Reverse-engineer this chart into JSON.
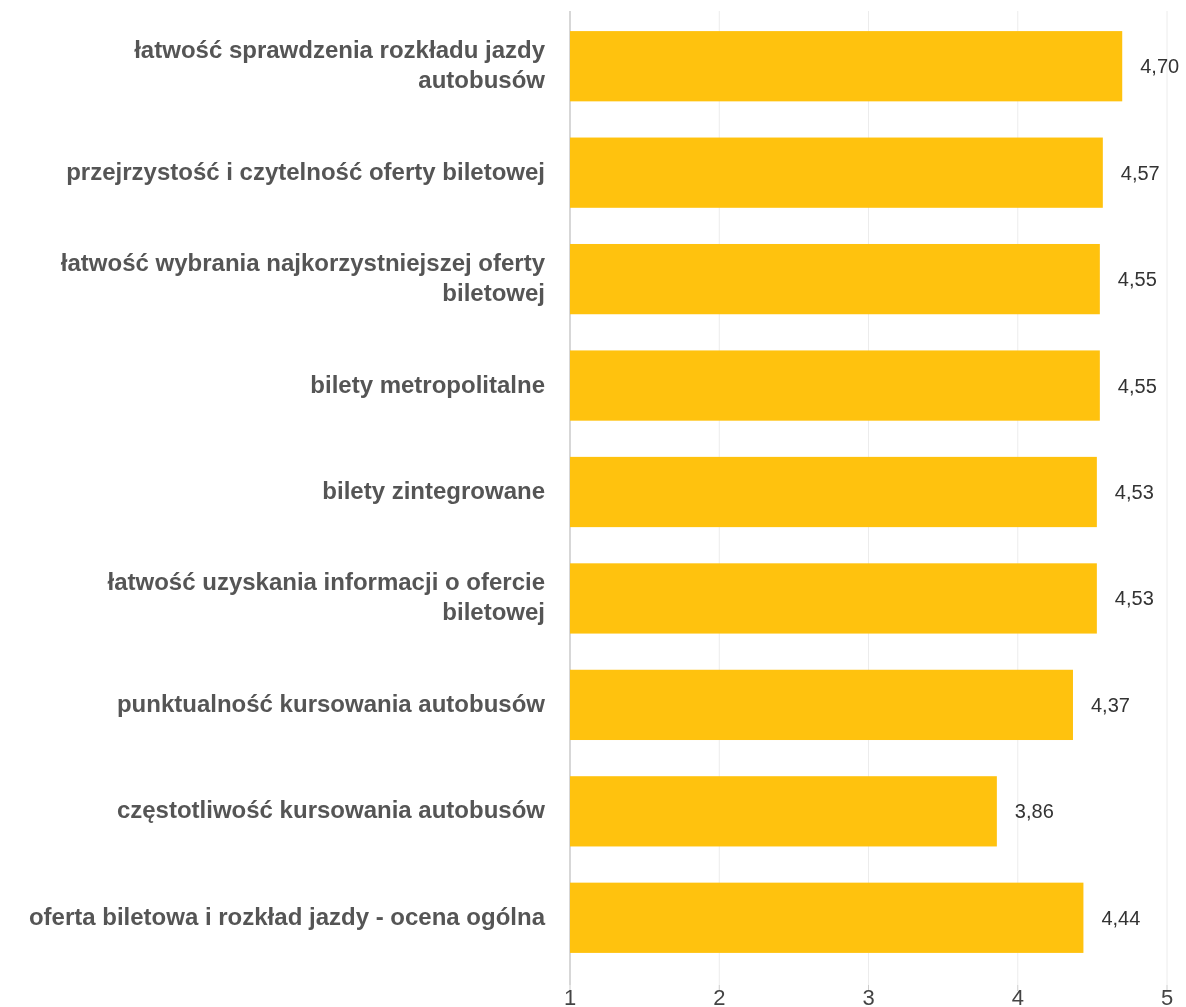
{
  "chart_data": {
    "type": "bar",
    "orientation": "horizontal",
    "categories": [
      "łatwość sprawdzenia rozkładu jazdy autobusów",
      "przejrzystość i czytelność oferty biletowej",
      "łatwość wybrania najkorzystniejszej oferty biletowej",
      "bilety metropolitalne",
      "bilety zintegrowane",
      "łatwość uzyskania informacji o ofercie biletowej",
      "punktualność kursowania autobusów",
      "częstotliwość kursowania autobusów",
      "oferta biletowa i rozkład jazdy - ocena ogólna"
    ],
    "values": [
      4.7,
      4.57,
      4.55,
      4.55,
      4.53,
      4.53,
      4.37,
      3.86,
      4.44
    ],
    "value_labels": [
      "4,70",
      "4,57",
      "4,55",
      "4,55",
      "4,53",
      "4,53",
      "4,37",
      "3,86",
      "4,44"
    ],
    "color": "#ffc20e",
    "xlim": [
      1,
      5
    ],
    "xticks": [
      1,
      2,
      3,
      4,
      5
    ],
    "grid": "x"
  }
}
